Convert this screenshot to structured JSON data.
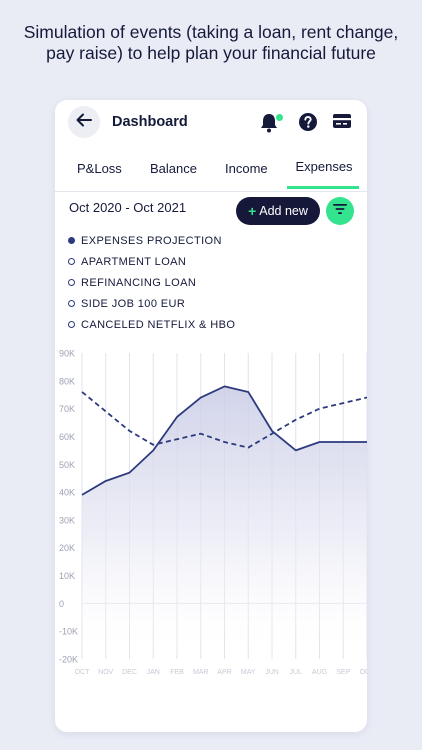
{
  "headline": "Simulation of events (taking a loan, rent change, pay raise) to help plan your financial future",
  "header": {
    "title": "Dashboard"
  },
  "icons": {
    "back": "arrow-left-icon",
    "bell": "bell-icon",
    "help": "help-circle-icon",
    "card": "credit-card-icon",
    "filter": "filter-icon"
  },
  "colors": {
    "accent": "#33e38d",
    "navy": "#16183a",
    "line": "#2d3a7e",
    "area": "#dfe1f0"
  },
  "tabs": [
    {
      "label": "P&Loss"
    },
    {
      "label": "Balance"
    },
    {
      "label": "Income"
    },
    {
      "label": "Expenses",
      "active": true
    }
  ],
  "date_range": "Oct 2020 - Oct 2021",
  "add_button": {
    "plus": "+",
    "label": "Add new"
  },
  "legend": [
    {
      "label": "EXPENSES PROJECTION",
      "selected": true
    },
    {
      "label": "APARTMENT LOAN",
      "selected": false
    },
    {
      "label": "REFINANCING LOAN",
      "selected": false
    },
    {
      "label": "SIDE JOB 100 EUR",
      "selected": false
    },
    {
      "label": "CANCELED NETFLIX & HBO",
      "selected": false
    }
  ],
  "chart_data": {
    "type": "area",
    "title": "",
    "xlabel": "",
    "ylabel": "",
    "categories": [
      "OCT",
      "NOV",
      "DEC",
      "JAN",
      "FEB",
      "MAR",
      "APR",
      "MAY",
      "JUN",
      "JUL",
      "AUG",
      "SEP",
      "OCT"
    ],
    "y_tick_labels": [
      "90K",
      "80K",
      "70K",
      "60K",
      "50K",
      "40K",
      "30K",
      "20K",
      "10K",
      "0",
      "-10K",
      "-20K"
    ],
    "ylim": [
      -20000,
      90000
    ],
    "grid": "vertical",
    "series": [
      {
        "style": "solid-area",
        "values": [
          39000,
          44000,
          47000,
          55000,
          67000,
          74000,
          78000,
          76000,
          62000,
          55000,
          58000,
          58000,
          58000
        ]
      },
      {
        "style": "dashed",
        "values": [
          76000,
          69000,
          62000,
          57000,
          59000,
          61000,
          58000,
          56000,
          61000,
          66000,
          70000,
          72000,
          74000
        ]
      }
    ]
  }
}
